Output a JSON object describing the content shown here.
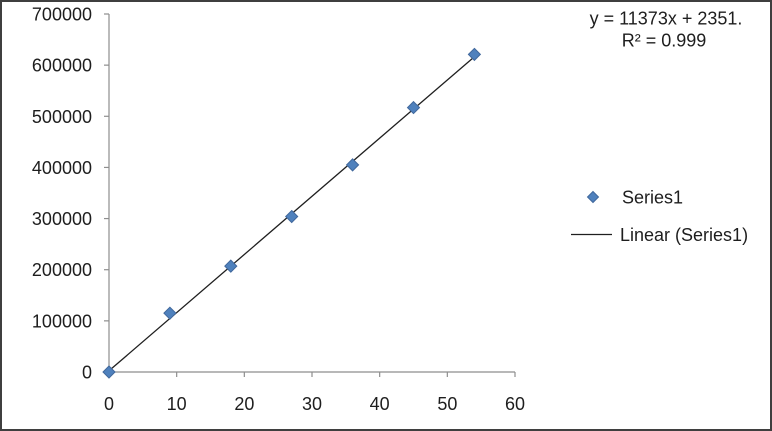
{
  "window": {
    "background": "#ffffff",
    "border_color": "#3f3f3f"
  },
  "chart_data": {
    "type": "scatter",
    "title": "",
    "xlabel": "",
    "ylabel": "",
    "xlim": [
      0,
      60
    ],
    "ylim": [
      0,
      700000
    ],
    "x_ticks": [
      0,
      10,
      20,
      30,
      40,
      50,
      60
    ],
    "x_tick_labels": [
      "0",
      "10",
      "20",
      "30",
      "40",
      "50",
      "60"
    ],
    "y_ticks": [
      0,
      100000,
      200000,
      300000,
      400000,
      500000,
      600000,
      700000
    ],
    "y_tick_labels": [
      "0",
      "100000",
      "200000",
      "300000",
      "400000",
      "500000",
      "600000",
      "700000"
    ],
    "grid": false,
    "plot_background": "#ffffff",
    "axis_color": "#8e8e8e",
    "text_color": "#1e1e1e",
    "series": [
      {
        "name": "Series1",
        "marker": "diamond",
        "color": "#4f81bd",
        "marker_edge_color": "#41689c",
        "x": [
          0,
          9,
          18,
          27,
          36,
          45,
          54
        ],
        "y": [
          0,
          115000,
          207000,
          304000,
          405000,
          517000,
          621000
        ]
      }
    ],
    "trendline": {
      "label": "Linear (Series1)",
      "for_series": "Series1",
      "slope": 11373,
      "intercept": 2351,
      "equation": "y = 11373x + 2351.",
      "r_squared_label": "R² = 0.999",
      "color": "#1f1f1f",
      "x_range": [
        0,
        54
      ]
    },
    "legend": {
      "position": "right",
      "entries": [
        "Series1",
        "Linear (Series1)"
      ]
    }
  }
}
